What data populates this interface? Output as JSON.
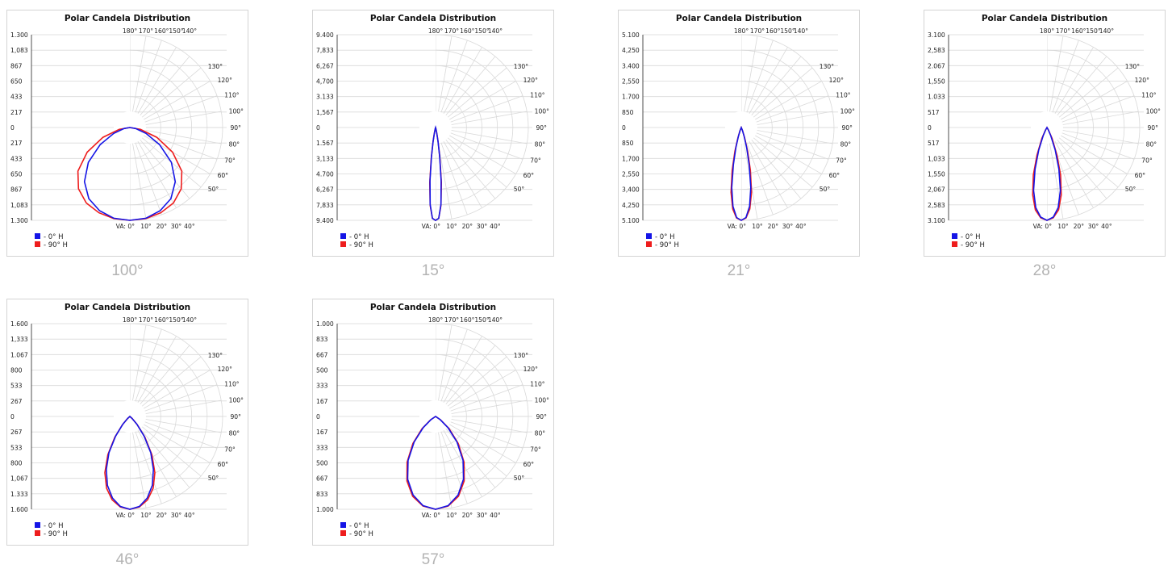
{
  "legend": {
    "h0": "- 0° H",
    "h90": "- 90° H"
  },
  "colors": {
    "h0": "#1515e6",
    "h90": "#ee1d1d",
    "grid": "#d9d9d9",
    "axis": "#222222"
  },
  "chart_data": [
    {
      "type": "polar",
      "title": "Polar Candela Distribution",
      "caption": "100°",
      "cd_labels": [
        "1.300",
        "1,083",
        "867",
        "650",
        "433",
        "217",
        "0",
        "217",
        "433",
        "650",
        "867",
        "1,083",
        "1.300"
      ],
      "vertical_angle_labels": [
        "VA: 0°",
        "10°",
        "20°",
        "30°",
        "40°",
        "50°",
        "60°",
        "70°",
        "80°",
        "90°",
        "100°",
        "110°",
        "120°",
        "130°",
        "140°",
        "150°",
        "160°",
        "170°",
        "180°"
      ],
      "max_cd": 1300,
      "series": [
        {
          "name": "0° H",
          "points": [
            [
              0,
              1300
            ],
            [
              10,
              1290
            ],
            [
              20,
              1240
            ],
            [
              30,
              1150
            ],
            [
              40,
              990
            ],
            [
              50,
              760
            ],
            [
              60,
              480
            ],
            [
              70,
              240
            ],
            [
              80,
              80
            ],
            [
              90,
              0
            ]
          ]
        },
        {
          "name": "90° H",
          "points": [
            [
              0,
              1300
            ],
            [
              10,
              1295
            ],
            [
              20,
              1270
            ],
            [
              30,
              1220
            ],
            [
              40,
              1120
            ],
            [
              50,
              950
            ],
            [
              60,
              690
            ],
            [
              70,
              400
            ],
            [
              80,
              150
            ],
            [
              90,
              0
            ]
          ]
        }
      ]
    },
    {
      "type": "polar",
      "title": "Polar Candela Distribution",
      "caption": "15°",
      "cd_labels": [
        "9.400",
        "7,833",
        "6,267",
        "4,700",
        "3.133",
        "1,567",
        "0",
        "1.567",
        "3,133",
        "4.700",
        "6,267",
        "7,833",
        "9.400"
      ],
      "vertical_angle_labels": [
        "VA: 0°",
        "10°",
        "20°",
        "30°",
        "40°",
        "50°",
        "60°",
        "70°",
        "80°",
        "90°",
        "100°",
        "110°",
        "120°",
        "130°",
        "140°",
        "150°",
        "160°",
        "170°",
        "180°"
      ],
      "max_cd": 9400,
      "series": [
        {
          "name": "0° H",
          "points": [
            [
              0,
              9400
            ],
            [
              2,
              9200
            ],
            [
              4,
              7800
            ],
            [
              6,
              5400
            ],
            [
              8,
              3000
            ],
            [
              10,
              1400
            ],
            [
              12,
              550
            ],
            [
              15,
              150
            ],
            [
              20,
              0
            ]
          ]
        },
        {
          "name": "90° H",
          "points": [
            [
              0,
              9400
            ],
            [
              2,
              9200
            ],
            [
              4,
              7900
            ],
            [
              6,
              5600
            ],
            [
              8,
              3200
            ],
            [
              10,
              1550
            ],
            [
              12,
              620
            ],
            [
              15,
              170
            ],
            [
              20,
              0
            ]
          ]
        }
      ]
    },
    {
      "type": "polar",
      "title": "Polar Candela Distribution",
      "caption": "21°",
      "cd_labels": [
        "5.100",
        "4,250",
        "3.400",
        "2,550",
        "1.700",
        "850",
        "0",
        "850",
        "1,700",
        "2,550",
        "3,400",
        "4,250",
        "5.100"
      ],
      "vertical_angle_labels": [
        "VA: 0°",
        "10°",
        "20°",
        "30°",
        "40°",
        "50°",
        "60°",
        "70°",
        "80°",
        "90°",
        "100°",
        "110°",
        "120°",
        "130°",
        "140°",
        "150°",
        "160°",
        "170°",
        "180°"
      ],
      "max_cd": 5100,
      "series": [
        {
          "name": "0° H",
          "points": [
            [
              0,
              5100
            ],
            [
              3,
              4950
            ],
            [
              6,
              4350
            ],
            [
              9,
              3350
            ],
            [
              12,
              2100
            ],
            [
              15,
              1150
            ],
            [
              18,
              500
            ],
            [
              22,
              150
            ],
            [
              28,
              0
            ]
          ]
        },
        {
          "name": "90° H",
          "points": [
            [
              0,
              5100
            ],
            [
              3,
              4980
            ],
            [
              6,
              4500
            ],
            [
              9,
              3600
            ],
            [
              12,
              2400
            ],
            [
              15,
              1350
            ],
            [
              18,
              620
            ],
            [
              22,
              200
            ],
            [
              28,
              0
            ]
          ]
        }
      ]
    },
    {
      "type": "polar",
      "title": "Polar Candela Distribution",
      "caption": "28°",
      "cd_labels": [
        "3.100",
        "2,583",
        "2.067",
        "1,550",
        "1.033",
        "517",
        "0",
        "517",
        "1,033",
        "1,550",
        "2,067",
        "2,583",
        "3.100"
      ],
      "vertical_angle_labels": [
        "VA: 0°",
        "10°",
        "20°",
        "30°",
        "40°",
        "50°",
        "60°",
        "70°",
        "80°",
        "90°",
        "100°",
        "110°",
        "120°",
        "130°",
        "140°",
        "150°",
        "160°",
        "170°",
        "180°"
      ],
      "max_cd": 3100,
      "series": [
        {
          "name": "0° H",
          "points": [
            [
              0,
              3100
            ],
            [
              4,
              3000
            ],
            [
              8,
              2700
            ],
            [
              12,
              2150
            ],
            [
              16,
              1450
            ],
            [
              20,
              800
            ],
            [
              25,
              300
            ],
            [
              30,
              80
            ],
            [
              36,
              0
            ]
          ]
        },
        {
          "name": "90° H",
          "points": [
            [
              0,
              3100
            ],
            [
              4,
              3020
            ],
            [
              8,
              2780
            ],
            [
              12,
              2300
            ],
            [
              16,
              1650
            ],
            [
              20,
              980
            ],
            [
              25,
              400
            ],
            [
              30,
              110
            ],
            [
              36,
              0
            ]
          ]
        }
      ]
    },
    {
      "type": "polar",
      "title": "Polar Candela Distribution",
      "caption": "46°",
      "cd_labels": [
        "1.600",
        "1,333",
        "1.067",
        "800",
        "533",
        "267",
        "0",
        "267",
        "533",
        "800",
        "1,067",
        "1.333",
        "1.600"
      ],
      "vertical_angle_labels": [
        "VA: 0°",
        "10°",
        "20°",
        "30°",
        "40°",
        "50°",
        "60°",
        "70°",
        "80°",
        "90°",
        "100°",
        "110°",
        "120°",
        "130°",
        "140°",
        "150°",
        "160°",
        "170°",
        "180°"
      ],
      "max_cd": 1600,
      "series": [
        {
          "name": "0° H",
          "points": [
            [
              0,
              1600
            ],
            [
              6,
              1560
            ],
            [
              12,
              1440
            ],
            [
              18,
              1250
            ],
            [
              24,
              1000
            ],
            [
              30,
              720
            ],
            [
              36,
              420
            ],
            [
              42,
              180
            ],
            [
              48,
              50
            ],
            [
              55,
              0
            ]
          ]
        },
        {
          "name": "90° H",
          "points": [
            [
              0,
              1600
            ],
            [
              6,
              1570
            ],
            [
              12,
              1470
            ],
            [
              18,
              1300
            ],
            [
              24,
              1060
            ],
            [
              30,
              760
            ],
            [
              36,
              440
            ],
            [
              42,
              190
            ],
            [
              48,
              55
            ],
            [
              55,
              0
            ]
          ]
        }
      ]
    },
    {
      "type": "polar",
      "title": "Polar Candela Distribution",
      "caption": "57°",
      "cd_labels": [
        "1.000",
        "833",
        "667",
        "500",
        "333",
        "167",
        "0",
        "167",
        "333",
        "500",
        "667",
        "833",
        "1.000"
      ],
      "vertical_angle_labels": [
        "VA: 0°",
        "10°",
        "20°",
        "30°",
        "40°",
        "50°",
        "60°",
        "70°",
        "80°",
        "90°",
        "100°",
        "110°",
        "120°",
        "130°",
        "140°",
        "150°",
        "160°",
        "170°",
        "180°"
      ],
      "max_cd": 1000,
      "series": [
        {
          "name": "0° H",
          "points": [
            [
              0,
              1000
            ],
            [
              8,
              970
            ],
            [
              16,
              880
            ],
            [
              24,
              740
            ],
            [
              32,
              560
            ],
            [
              40,
              360
            ],
            [
              48,
              180
            ],
            [
              56,
              60
            ],
            [
              64,
              0
            ]
          ]
        },
        {
          "name": "90° H",
          "points": [
            [
              0,
              1000
            ],
            [
              8,
              975
            ],
            [
              16,
              895
            ],
            [
              24,
              760
            ],
            [
              32,
              580
            ],
            [
              40,
              380
            ],
            [
              48,
              195
            ],
            [
              56,
              65
            ],
            [
              64,
              0
            ]
          ]
        }
      ]
    }
  ]
}
